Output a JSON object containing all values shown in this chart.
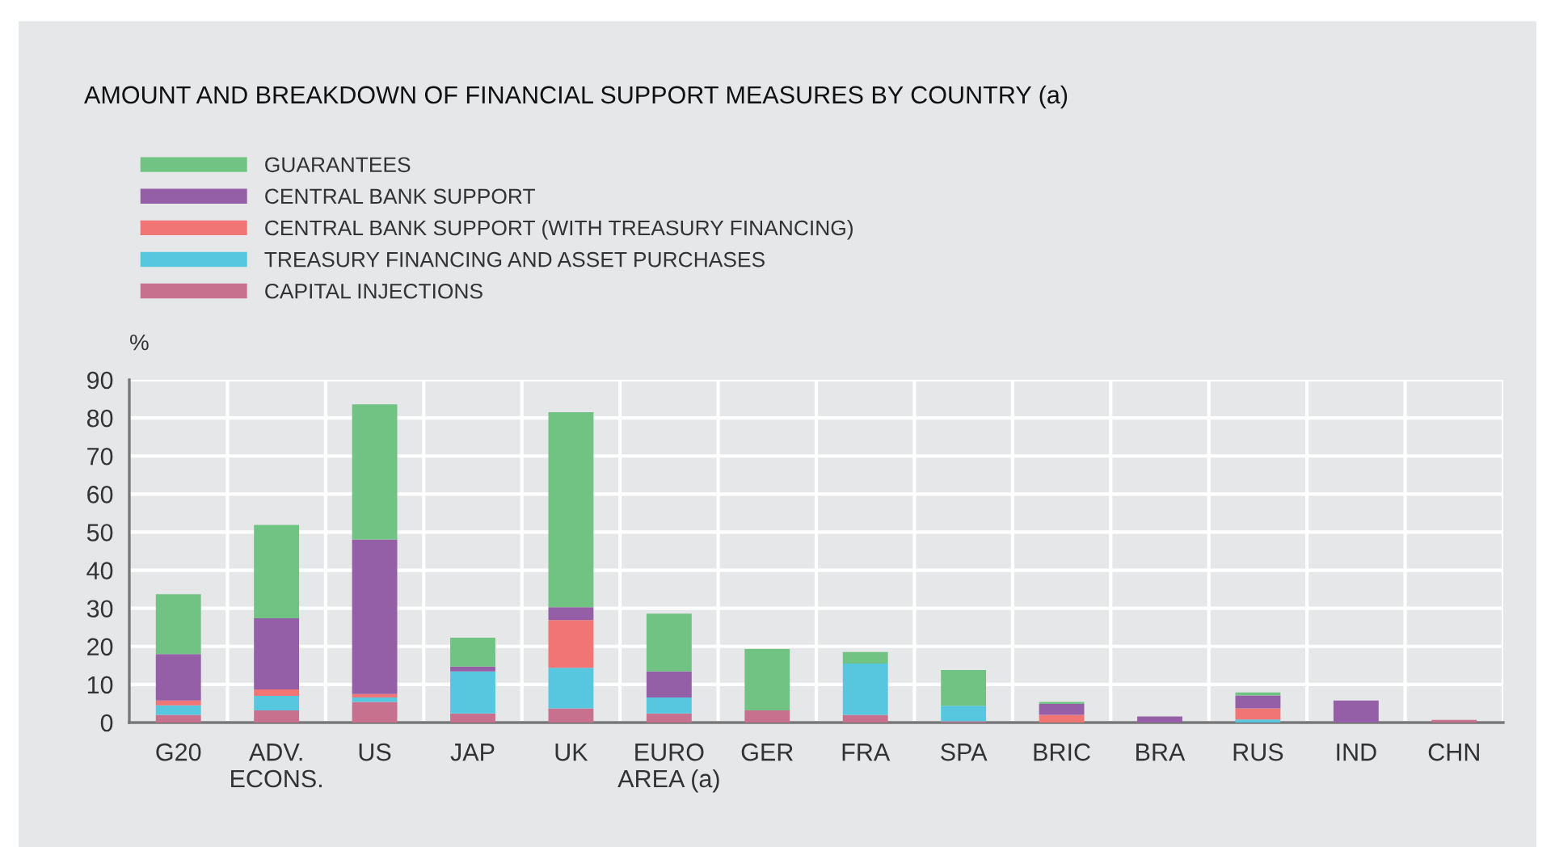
{
  "chart_data": {
    "type": "bar",
    "stacked": true,
    "title": "AMOUNT AND BREAKDOWN OF FINANCIAL SUPPORT MEASURES BY COUNTRY (a)",
    "ylabel": "%",
    "categories": [
      "G20",
      "ADV.\nECONS.",
      "US",
      "JAP",
      "UK",
      "EURO\nAREA (a)",
      "GER",
      "FRA",
      "SPA",
      "BRIC",
      "BRA",
      "RUS",
      "IND",
      "CHN"
    ],
    "series": [
      {
        "name": "CAPITAL INJECTIONS",
        "color": "#c8718e",
        "values": [
          2.0,
          3.2,
          5.4,
          2.4,
          3.7,
          2.4,
          3.2,
          2.0,
          0.3,
          0,
          0,
          0,
          0,
          0.7
        ]
      },
      {
        "name": "TREASURY FINANCING AND ASSET PURCHASES",
        "color": "#57c6df",
        "values": [
          2.5,
          3.8,
          1.2,
          11.0,
          10.7,
          4.2,
          0,
          13.5,
          4.1,
          0,
          0,
          0.8,
          0,
          0
        ]
      },
      {
        "name": "CENTRAL BANK SUPPORT (WITH TREASURY FINANCING)",
        "color": "#f27575",
        "values": [
          1.3,
          1.7,
          0.9,
          0,
          12.5,
          0,
          0,
          0,
          0,
          2.0,
          0,
          2.9,
          0,
          0
        ]
      },
      {
        "name": "CENTRAL BANK SUPPORT",
        "color": "#955fa7",
        "values": [
          12.2,
          18.7,
          40.6,
          1.3,
          3.4,
          6.8,
          0,
          0,
          0,
          2.9,
          1.6,
          3.4,
          5.8,
          0
        ]
      },
      {
        "name": "GUARANTEES",
        "color": "#70c383",
        "values": [
          15.7,
          24.5,
          35.5,
          7.6,
          51.2,
          15.2,
          16.1,
          3.0,
          9.4,
          0.5,
          0,
          0.8,
          0,
          0
        ]
      }
    ],
    "ylim": [
      0,
      90
    ],
    "yticks": [
      0,
      10,
      20,
      30,
      40,
      50,
      60,
      70,
      80,
      90
    ],
    "grid": true,
    "legend": "top left"
  }
}
